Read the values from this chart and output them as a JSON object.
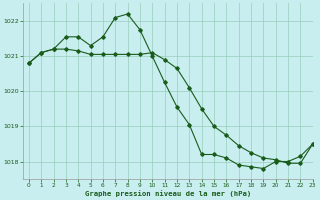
{
  "title": "Graphe pression niveau de la mer (hPa)",
  "bg_color": "#c8eef0",
  "grid_color": "#99ccbb",
  "line_color": "#1a5c1a",
  "xlim": [
    -0.5,
    23
  ],
  "ylim": [
    1017.5,
    1022.5
  ],
  "yticks": [
    1018,
    1019,
    1020,
    1021,
    1022
  ],
  "xticks": [
    0,
    1,
    2,
    3,
    4,
    5,
    6,
    7,
    8,
    9,
    10,
    11,
    12,
    13,
    14,
    15,
    16,
    17,
    18,
    19,
    20,
    21,
    22,
    23
  ],
  "series1_x": [
    0,
    1,
    2,
    3,
    4,
    5,
    6,
    7,
    8,
    9,
    10,
    11,
    12,
    13,
    14,
    15,
    16,
    17,
    18,
    19,
    20,
    21,
    22,
    23
  ],
  "series1_y": [
    1020.8,
    1021.1,
    1021.2,
    1021.55,
    1021.55,
    1021.3,
    1021.55,
    1022.1,
    1022.2,
    1021.75,
    1021.0,
    1020.25,
    1019.55,
    1019.05,
    1018.2,
    1018.2,
    1018.1,
    1017.9,
    1017.85,
    1017.8,
    1018.0,
    1018.0,
    1018.15,
    1018.5
  ],
  "series2_x": [
    0,
    1,
    2,
    3,
    4,
    5,
    6,
    7,
    8,
    9,
    10,
    11,
    12,
    13,
    14,
    15,
    16,
    17,
    18,
    19,
    20,
    21,
    22,
    23
  ],
  "series2_y": [
    1020.8,
    1021.1,
    1021.2,
    1021.2,
    1021.15,
    1021.05,
    1021.05,
    1021.05,
    1021.05,
    1021.05,
    1021.1,
    1020.9,
    1020.65,
    1020.1,
    1019.5,
    1019.0,
    1018.75,
    1018.45,
    1018.25,
    1018.1,
    1018.05,
    1017.95,
    1017.95,
    1018.5
  ],
  "figsize": [
    3.2,
    2.0
  ],
  "dpi": 100
}
